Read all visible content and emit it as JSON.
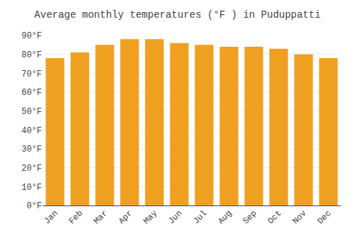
{
  "chart_data": {
    "type": "bar",
    "title": "Average monthly temperatures (°F ) in Puduppatti",
    "categories": [
      "Jan",
      "Feb",
      "Mar",
      "Apr",
      "May",
      "Jun",
      "Jul",
      "Aug",
      "Sep",
      "Oct",
      "Nov",
      "Dec"
    ],
    "values": [
      78,
      81,
      85,
      88,
      88,
      86,
      85,
      84,
      84,
      83,
      80,
      78
    ],
    "color": "#F0A020",
    "ylim": [
      0,
      90
    ],
    "yticks": [
      {
        "value": 0,
        "label": "0°F"
      },
      {
        "value": 10,
        "label": "10°F"
      },
      {
        "value": 20,
        "label": "20°F"
      },
      {
        "value": 30,
        "label": "30°F"
      },
      {
        "value": 40,
        "label": "40°F"
      },
      {
        "value": 50,
        "label": "50°F"
      },
      {
        "value": 60,
        "label": "60°F"
      },
      {
        "value": 70,
        "label": "70°F"
      },
      {
        "value": 80,
        "label": "80°F"
      },
      {
        "value": 90,
        "label": "90°F"
      }
    ],
    "grid": true
  }
}
